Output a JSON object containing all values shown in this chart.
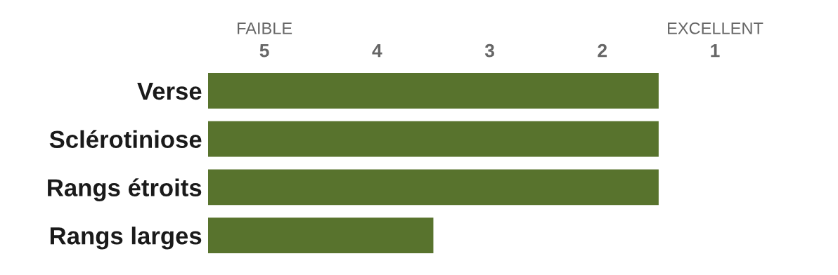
{
  "chart_data": {
    "type": "bar",
    "orientation": "horizontal",
    "categories": [
      "Verse",
      "Sclérotiniose",
      "Rangs étroits",
      "Rangs larges"
    ],
    "base": [
      1.5,
      1.5,
      1.5,
      3.5
    ],
    "values": [
      4,
      4,
      4,
      2
    ],
    "color": "#58732d",
    "xlim": [
      5.5,
      1
    ],
    "xticks": [
      5,
      4,
      3,
      2,
      1
    ],
    "annotations": [
      "FAIBLE",
      "EXCELLENT"
    ],
    "grid": false,
    "legend": false
  }
}
